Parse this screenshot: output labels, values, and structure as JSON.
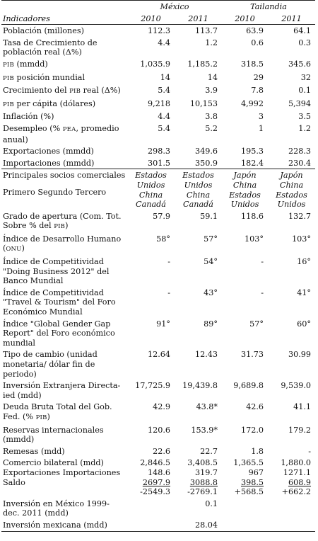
{
  "header": {
    "country1": "México",
    "country2": "Tailandia",
    "label": "Indicadores",
    "years": [
      "2010",
      "2011",
      "2010",
      "2011"
    ]
  },
  "rows": [
    {
      "label": "Población (millones)",
      "values": [
        "112.3",
        "113.7",
        "63.9",
        "64.1"
      ]
    },
    {
      "label": "Tasa de Crecimiento de población real (Δ%)",
      "values": [
        "4.4",
        "1.2",
        "0.6",
        "0.3"
      ]
    },
    {
      "label": "PIB (mmdd)",
      "values": [
        "1,035.9",
        "1,185.2",
        "318.5",
        "345.6"
      ]
    },
    {
      "label": "PIB posición mundial",
      "values": [
        "14",
        "14",
        "29",
        "32"
      ]
    },
    {
      "label": "Crecimiento del PIB real (Δ%)",
      "values": [
        "5.4",
        "3.9",
        "7.8",
        "0.1"
      ]
    },
    {
      "label": "PIB per cápita (dólares)",
      "values": [
        "9,218",
        "10,153",
        "4,992",
        "5,394"
      ]
    },
    {
      "label": "Inflación (%)",
      "values": [
        "4.4",
        "3.8",
        "3",
        "3.5"
      ]
    },
    {
      "label": "Desempleo (% PEA, promedio anual)",
      "values": [
        "5.4",
        "5.2",
        "1",
        "1.2"
      ]
    },
    {
      "label": "Exportaciones (mmdd)",
      "values": [
        "298.3",
        "349.6",
        "195.3",
        "228.3"
      ]
    },
    {
      "label": "Importaciones (mmdd)",
      "values": [
        "301.5",
        "350.9",
        "182.4",
        "230.4"
      ]
    }
  ],
  "socios": {
    "label1": "Principales socios comerciales",
    "label2": "Primero Segundo Tercero",
    "values": [
      "Estados Unidos China Canadá",
      "Estados Unidos China Canadá",
      "Japón China Estados Unidos",
      "Japón China Estados Unidos"
    ]
  },
  "rows2": [
    {
      "label": "Grado de apertura (Com. Tot. Sobre % del PIB)",
      "values": [
        "57.9",
        "59.1",
        "118.6",
        "132.7"
      ]
    },
    {
      "label": "Índice de Desarrollo Humano (ONU)",
      "values": [
        "58°",
        "57°",
        "103°",
        "103°"
      ]
    },
    {
      "label": "Índice de Competitividad \"Doing Business 2012\" del Banco Mundial",
      "values": [
        "-",
        "54°",
        "-",
        "16°"
      ]
    },
    {
      "label": "Índice de Competitividad \"Travel & Tourism\" del Foro Económico Mundial",
      "values": [
        "-",
        "43°",
        "-",
        "41°"
      ]
    },
    {
      "label": "Índice \"Global Gender Gap Report\" del Foro económico mundial",
      "values": [
        "91°",
        "89°",
        "57°",
        "60°"
      ]
    },
    {
      "label": "Tipo de cambio (unidad monetaria/ dólar fin de periodo)",
      "values": [
        "12.64",
        "12.43",
        "31.73",
        "30.99"
      ]
    },
    {
      "label": "Inversión Extranjera Directa-ied (mdd)",
      "values": [
        "17,725.9",
        "19,439.8",
        "9,689.8",
        "9,539.0"
      ]
    },
    {
      "label": "Deuda Bruta Total del Gob. Fed. (% PIB)",
      "values": [
        "42.9",
        "43.8*",
        "42.6",
        "41.1"
      ]
    },
    {
      "label": "Reservas internacionales (mmdd)",
      "values": [
        "120.6",
        "153.9*",
        "172.0",
        "179.2"
      ]
    },
    {
      "label": "Remesas (mdd)",
      "values": [
        "22.6",
        "22.7",
        "1.8",
        "-"
      ]
    }
  ],
  "comercio": {
    "label1": "Comercio bilateral (mdd)",
    "label2": "Exportaciones Importaciones",
    "label3": "Saldo",
    "totals": [
      "2,846.5",
      "3,408.5",
      "1,365.5",
      "1,880.0"
    ],
    "exports": [
      "148.6",
      "319.7",
      "967",
      "1271.1"
    ],
    "imports": [
      "2697.9",
      "3088.8",
      "398.5",
      "608.9"
    ],
    "saldo": [
      "-2549.3",
      "-2769.1",
      "+568.5",
      "+662.2"
    ]
  },
  "inversion": {
    "label": "Inversión en México 1999-dec. 2011 (mdd)",
    "value": "0.1"
  },
  "inversion_mx": {
    "label": "Inversión mexicana (mdd)",
    "value": "28.04"
  }
}
